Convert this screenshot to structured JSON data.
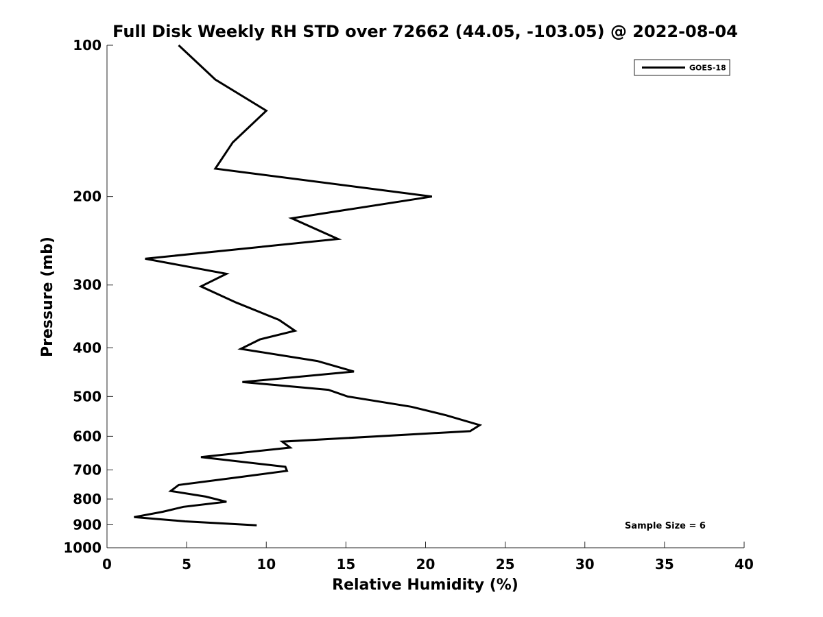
{
  "chart_data": {
    "type": "line",
    "title": "Full Disk Weekly RH STD over 72662 (44.05, -103.05) @ 2022-08-04",
    "xlabel": "Relative Humidity (%)",
    "ylabel": "Pressure (mb)",
    "xlim": [
      0,
      40
    ],
    "ylim": [
      100,
      1000
    ],
    "y_scale": "log",
    "y_reversed": true,
    "x_ticks": [
      "0",
      "5",
      "10",
      "15",
      "20",
      "25",
      "30",
      "35",
      "40"
    ],
    "y_ticks": [
      "100",
      "200",
      "300",
      "400",
      "500",
      "600",
      "700",
      "800",
      "900",
      "1000"
    ],
    "grid": false,
    "legend": {
      "position": "top-right",
      "entries": [
        "GOES-18"
      ]
    },
    "annotation": "Sample Size = 6",
    "series": [
      {
        "name": "GOES-18",
        "color": "#000000",
        "points": [
          {
            "x": 4.5,
            "y": 100
          },
          {
            "x": 6.8,
            "y": 117
          },
          {
            "x": 10.0,
            "y": 135
          },
          {
            "x": 7.9,
            "y": 156
          },
          {
            "x": 6.8,
            "y": 176
          },
          {
            "x": 20.4,
            "y": 200
          },
          {
            "x": 11.6,
            "y": 221
          },
          {
            "x": 14.5,
            "y": 243
          },
          {
            "x": 2.4,
            "y": 266
          },
          {
            "x": 7.5,
            "y": 285
          },
          {
            "x": 5.9,
            "y": 302
          },
          {
            "x": 8.1,
            "y": 325
          },
          {
            "x": 10.8,
            "y": 352
          },
          {
            "x": 11.8,
            "y": 370
          },
          {
            "x": 9.6,
            "y": 385
          },
          {
            "x": 8.4,
            "y": 402
          },
          {
            "x": 13.2,
            "y": 425
          },
          {
            "x": 15.5,
            "y": 446
          },
          {
            "x": 8.5,
            "y": 468
          },
          {
            "x": 13.9,
            "y": 485
          },
          {
            "x": 15.1,
            "y": 500
          },
          {
            "x": 19.1,
            "y": 524
          },
          {
            "x": 21.3,
            "y": 545
          },
          {
            "x": 23.4,
            "y": 570
          },
          {
            "x": 22.8,
            "y": 586
          },
          {
            "x": 11.0,
            "y": 615
          },
          {
            "x": 11.5,
            "y": 632
          },
          {
            "x": 5.9,
            "y": 660
          },
          {
            "x": 11.2,
            "y": 690
          },
          {
            "x": 11.3,
            "y": 703
          },
          {
            "x": 8.1,
            "y": 725
          },
          {
            "x": 4.5,
            "y": 750
          },
          {
            "x": 4.0,
            "y": 771
          },
          {
            "x": 6.2,
            "y": 791
          },
          {
            "x": 7.5,
            "y": 810
          },
          {
            "x": 4.8,
            "y": 829
          },
          {
            "x": 3.5,
            "y": 848
          },
          {
            "x": 1.7,
            "y": 869
          },
          {
            "x": 4.9,
            "y": 886
          },
          {
            "x": 9.4,
            "y": 902
          }
        ]
      }
    ]
  }
}
